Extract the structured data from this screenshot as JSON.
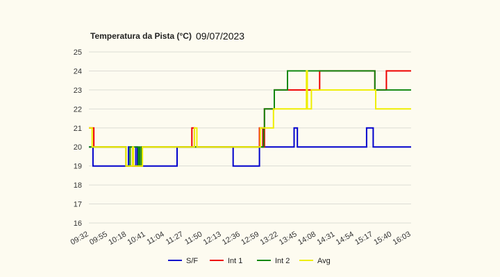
{
  "chart_data": {
    "type": "line",
    "title": "Temperatura da Pista (°C)",
    "date": "09/07/2023",
    "xlabel": "",
    "ylabel": "",
    "ylim": [
      16,
      25
    ],
    "y_ticks": [
      "25",
      "24",
      "23",
      "22",
      "21",
      "20",
      "19",
      "18",
      "17",
      "16"
    ],
    "x_range": [
      "09:32",
      "16:03"
    ],
    "x_ticks": [
      "09:32",
      "09:55",
      "10:18",
      "10:41",
      "11:04",
      "11:27",
      "11:50",
      "12:13",
      "12:36",
      "12:59",
      "13:22",
      "13:45",
      "14:08",
      "14:31",
      "14:54",
      "15:17",
      "15:40",
      "16:03"
    ],
    "grid": true,
    "legend_position": "bottom",
    "series": [
      {
        "name": "S/F",
        "color": "#0000cc",
        "points": [
          [
            "09:32",
            20
          ],
          [
            "09:36",
            20
          ],
          [
            "09:37",
            19
          ],
          [
            "10:19",
            19
          ],
          [
            "10:20",
            20
          ],
          [
            "10:24",
            20
          ],
          [
            "10:25",
            19
          ],
          [
            "10:28",
            19
          ],
          [
            "10:29",
            20
          ],
          [
            "10:30",
            20
          ],
          [
            "10:31",
            19
          ],
          [
            "11:18",
            19
          ],
          [
            "11:19",
            20
          ],
          [
            "11:47",
            20
          ],
          [
            "11:48",
            20
          ],
          [
            "12:26",
            20
          ],
          [
            "12:27",
            19
          ],
          [
            "12:58",
            19
          ],
          [
            "12:59",
            20
          ],
          [
            "13:40",
            20
          ],
          [
            "13:41",
            21
          ],
          [
            "13:44",
            21
          ],
          [
            "13:45",
            20
          ],
          [
            "15:08",
            20
          ],
          [
            "15:09",
            21
          ],
          [
            "15:16",
            21
          ],
          [
            "15:17",
            20
          ],
          [
            "16:03",
            20
          ]
        ]
      },
      {
        "name": "Int 1",
        "color": "#ee0000",
        "points": [
          [
            "09:32",
            21
          ],
          [
            "09:37",
            21
          ],
          [
            "09:38",
            20
          ],
          [
            "10:16",
            20
          ],
          [
            "10:17",
            19
          ],
          [
            "10:24",
            19
          ],
          [
            "10:25",
            20
          ],
          [
            "10:26",
            19
          ],
          [
            "10:35",
            19
          ],
          [
            "10:36",
            20
          ],
          [
            "11:36",
            20
          ],
          [
            "11:37",
            21
          ],
          [
            "11:39",
            21
          ],
          [
            "11:40",
            20
          ],
          [
            "12:58",
            20
          ],
          [
            "12:59",
            21
          ],
          [
            "13:02",
            21
          ],
          [
            "13:03",
            20
          ],
          [
            "13:04",
            20
          ],
          [
            "13:05",
            22
          ],
          [
            "13:16",
            22
          ],
          [
            "13:17",
            23
          ],
          [
            "13:46",
            23
          ],
          [
            "13:47",
            23
          ],
          [
            "14:00",
            23
          ],
          [
            "14:01",
            23
          ],
          [
            "14:11",
            23
          ],
          [
            "14:12",
            24
          ],
          [
            "15:18",
            24
          ],
          [
            "15:19",
            23
          ],
          [
            "15:32",
            23
          ],
          [
            "15:33",
            24
          ],
          [
            "16:03",
            24
          ]
        ]
      },
      {
        "name": "Int 2",
        "color": "#118811",
        "points": [
          [
            "09:32",
            20
          ],
          [
            "10:16",
            20
          ],
          [
            "10:17",
            19
          ],
          [
            "10:21",
            19
          ],
          [
            "10:22",
            20
          ],
          [
            "10:31",
            20
          ],
          [
            "10:32",
            19
          ],
          [
            "10:33",
            20
          ],
          [
            "10:34",
            19
          ],
          [
            "10:35",
            19
          ],
          [
            "10:36",
            20
          ],
          [
            "12:58",
            20
          ],
          [
            "12:59",
            20
          ],
          [
            "13:04",
            21
          ],
          [
            "13:05",
            22
          ],
          [
            "13:16",
            22
          ],
          [
            "13:17",
            23
          ],
          [
            "13:32",
            23
          ],
          [
            "13:33",
            24
          ],
          [
            "15:18",
            24
          ],
          [
            "15:19",
            23
          ],
          [
            "16:03",
            23
          ]
        ]
      },
      {
        "name": "Avg",
        "color": "#eeee00",
        "points": [
          [
            "09:32",
            21
          ],
          [
            "09:35",
            21
          ],
          [
            "09:36",
            20
          ],
          [
            "10:16",
            20
          ],
          [
            "10:17",
            19
          ],
          [
            "10:24",
            19
          ],
          [
            "10:25",
            20
          ],
          [
            "10:26",
            19
          ],
          [
            "10:36",
            19
          ],
          [
            "10:37",
            20
          ],
          [
            "11:39",
            20
          ],
          [
            "11:40",
            21
          ],
          [
            "11:42",
            21
          ],
          [
            "11:43",
            20
          ],
          [
            "12:59",
            20
          ],
          [
            "13:00",
            21
          ],
          [
            "13:15",
            21
          ],
          [
            "13:16",
            22
          ],
          [
            "13:55",
            22
          ],
          [
            "13:56",
            24
          ],
          [
            "13:57",
            22
          ],
          [
            "14:01",
            22
          ],
          [
            "14:02",
            23
          ],
          [
            "15:19",
            23
          ],
          [
            "15:20",
            22
          ],
          [
            "16:03",
            22
          ]
        ]
      }
    ]
  }
}
